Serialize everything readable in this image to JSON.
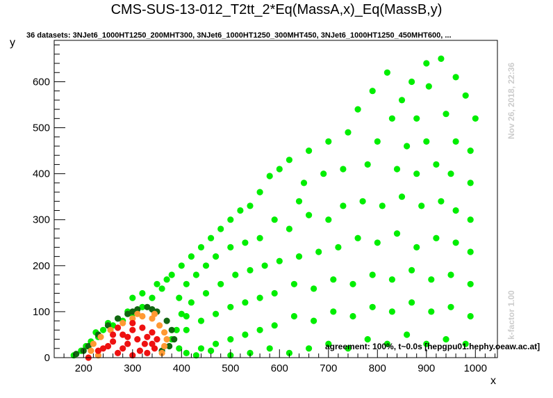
{
  "header": {
    "title": "CMS-SUS-13-012_T2tt_2*Eq(MassA,x)_Eq(MassB,y)",
    "subtitle": "36 datasets: 3NJet6_1000HT1250_200MHT300, 3NJet6_1000HT1250_300MHT450, 3NJet6_1000HT1250_450MHT600,  ..."
  },
  "side_labels": {
    "timestamp": "Nov 26, 2018, 22:36",
    "kfactor": "k-factor 1.00"
  },
  "footer": {
    "agreement": "agreement: 100%, t~0.0s [hepgpu01.hephy.oeaw.ac.at]"
  },
  "chart_data": {
    "type": "scatter",
    "title": "CMS-SUS-13-012_T2tt_2*Eq(MassA,x)_Eq(MassB,y)",
    "xlabel": "x",
    "ylabel": "y",
    "xlim": [
      140,
      1045
    ],
    "ylim": [
      0,
      690
    ],
    "xticks": [
      200,
      300,
      400,
      500,
      600,
      700,
      800,
      900,
      1000
    ],
    "yticks": [
      0,
      100,
      200,
      300,
      400,
      500,
      600
    ],
    "grid": false,
    "legend": "none",
    "colors": {
      "bright_green": "#00ee00",
      "dark_green": "#116611",
      "orange": "#ff9933",
      "red": "#ee1111"
    },
    "series": [
      {
        "color": "#00ee00",
        "points": [
          [
            900,
            640
          ],
          [
            930,
            650
          ],
          [
            870,
            600
          ],
          [
            960,
            610
          ],
          [
            820,
            620
          ],
          [
            980,
            570
          ],
          [
            850,
            560
          ],
          [
            905,
            590
          ],
          [
            790,
            580
          ],
          [
            1000,
            520
          ],
          [
            940,
            530
          ],
          [
            880,
            520
          ],
          [
            830,
            520
          ],
          [
            760,
            540
          ],
          [
            990,
            450
          ],
          [
            960,
            470
          ],
          [
            900,
            470
          ],
          [
            860,
            460
          ],
          [
            800,
            470
          ],
          [
            740,
            490
          ],
          [
            700,
            470
          ],
          [
            660,
            450
          ],
          [
            620,
            430
          ],
          [
            600,
            410
          ],
          [
            580,
            395
          ],
          [
            990,
            380
          ],
          [
            950,
            400
          ],
          [
            920,
            420
          ],
          [
            880,
            400
          ],
          [
            840,
            410
          ],
          [
            780,
            420
          ],
          [
            730,
            410
          ],
          [
            690,
            400
          ],
          [
            650,
            380
          ],
          [
            640,
            340
          ],
          [
            560,
            360
          ],
          [
            540,
            330
          ],
          [
            520,
            320
          ],
          [
            500,
            300
          ],
          [
            480,
            280
          ],
          [
            460,
            260
          ],
          [
            440,
            240
          ],
          [
            420,
            220
          ],
          [
            400,
            200
          ],
          [
            380,
            180
          ],
          [
            360,
            150
          ],
          [
            340,
            130
          ],
          [
            320,
            110
          ],
          [
            300,
            95
          ],
          [
            280,
            80
          ],
          [
            990,
            300
          ],
          [
            960,
            320
          ],
          [
            930,
            340
          ],
          [
            890,
            330
          ],
          [
            850,
            350
          ],
          [
            810,
            330
          ],
          [
            770,
            340
          ],
          [
            730,
            330
          ],
          [
            700,
            300
          ],
          [
            660,
            310
          ],
          [
            620,
            280
          ],
          [
            590,
            300
          ],
          [
            560,
            260
          ],
          [
            530,
            250
          ],
          [
            500,
            240
          ],
          [
            470,
            220
          ],
          [
            450,
            200
          ],
          [
            430,
            180
          ],
          [
            410,
            160
          ],
          [
            395,
            130
          ],
          [
            990,
            230
          ],
          [
            960,
            250
          ],
          [
            920,
            260
          ],
          [
            880,
            240
          ],
          [
            840,
            270
          ],
          [
            800,
            250
          ],
          [
            760,
            260
          ],
          [
            720,
            240
          ],
          [
            680,
            230
          ],
          [
            640,
            220
          ],
          [
            600,
            210
          ],
          [
            570,
            200
          ],
          [
            540,
            190
          ],
          [
            510,
            180
          ],
          [
            480,
            160
          ],
          [
            450,
            140
          ],
          [
            420,
            120
          ],
          [
            400,
            95
          ],
          [
            990,
            160
          ],
          [
            950,
            180
          ],
          [
            910,
            170
          ],
          [
            870,
            190
          ],
          [
            830,
            170
          ],
          [
            790,
            180
          ],
          [
            750,
            160
          ],
          [
            710,
            170
          ],
          [
            670,
            150
          ],
          [
            630,
            160
          ],
          [
            590,
            140
          ],
          [
            560,
            130
          ],
          [
            530,
            120
          ],
          [
            500,
            110
          ],
          [
            470,
            95
          ],
          [
            440,
            80
          ],
          [
            410,
            60
          ],
          [
            990,
            90
          ],
          [
            950,
            110
          ],
          [
            910,
            100
          ],
          [
            870,
            120
          ],
          [
            830,
            100
          ],
          [
            790,
            110
          ],
          [
            750,
            90
          ],
          [
            710,
            100
          ],
          [
            670,
            80
          ],
          [
            630,
            90
          ],
          [
            590,
            70
          ],
          [
            560,
            60
          ],
          [
            530,
            50
          ],
          [
            500,
            40
          ],
          [
            470,
            30
          ],
          [
            440,
            20
          ],
          [
            410,
            10
          ],
          [
            980,
            30
          ],
          [
            940,
            40
          ],
          [
            900,
            30
          ],
          [
            860,
            50
          ],
          [
            820,
            30
          ],
          [
            780,
            40
          ],
          [
            740,
            20
          ],
          [
            700,
            30
          ],
          [
            660,
            20
          ],
          [
            620,
            10
          ],
          [
            580,
            20
          ],
          [
            540,
            10
          ],
          [
            500,
            5
          ],
          [
            460,
            15
          ],
          [
            430,
            5
          ],
          [
            395,
            20
          ],
          [
            380,
            40
          ],
          [
            390,
            60
          ],
          [
            410,
            90
          ],
          [
            300,
            130
          ],
          [
            320,
            140
          ],
          [
            350,
            160
          ],
          [
            370,
            170
          ],
          [
            260,
            70
          ],
          [
            240,
            60
          ],
          [
            230,
            45
          ],
          [
            215,
            35
          ],
          [
            205,
            25
          ],
          [
            195,
            15
          ],
          [
            180,
            5
          ],
          [
            225,
            55
          ],
          [
            250,
            75
          ],
          [
            270,
            85
          ],
          [
            290,
            100
          ]
        ]
      },
      {
        "color": "#116611",
        "points": [
          [
            200,
            15
          ],
          [
            210,
            25
          ],
          [
            185,
            8
          ],
          [
            230,
            50
          ],
          [
            250,
            70
          ],
          [
            270,
            85
          ],
          [
            290,
            95
          ],
          [
            310,
            105
          ],
          [
            330,
            110
          ],
          [
            350,
            100
          ],
          [
            370,
            80
          ],
          [
            380,
            60
          ],
          [
            385,
            40
          ],
          [
            375,
            25
          ],
          [
            360,
            15
          ],
          [
            340,
            105
          ],
          [
            300,
            100
          ]
        ]
      },
      {
        "color": "#ff9933",
        "points": [
          [
            220,
            30
          ],
          [
            235,
            45
          ],
          [
            255,
            60
          ],
          [
            280,
            75
          ],
          [
            300,
            85
          ],
          [
            320,
            90
          ],
          [
            340,
            85
          ],
          [
            355,
            70
          ],
          [
            365,
            55
          ],
          [
            370,
            40
          ],
          [
            365,
            25
          ],
          [
            360,
            10
          ],
          [
            215,
            15
          ],
          [
            230,
            5
          ],
          [
            345,
            95
          ],
          [
            310,
            95
          ]
        ]
      },
      {
        "color": "#ee1111",
        "points": [
          [
            210,
            0
          ],
          [
            240,
            20
          ],
          [
            260,
            35
          ],
          [
            280,
            50
          ],
          [
            300,
            60
          ],
          [
            320,
            65
          ],
          [
            340,
            55
          ],
          [
            350,
            40
          ],
          [
            345,
            20
          ],
          [
            330,
            10
          ],
          [
            300,
            5
          ],
          [
            270,
            10
          ],
          [
            250,
            25
          ],
          [
            290,
            30
          ],
          [
            310,
            40
          ],
          [
            325,
            30
          ],
          [
            280,
            20
          ],
          [
            260,
            50
          ],
          [
            300,
            75
          ],
          [
            330,
            45
          ],
          [
            230,
            15
          ],
          [
            290,
            45
          ],
          [
            315,
            15
          ],
          [
            340,
            30
          ],
          [
            270,
            65
          ]
        ]
      }
    ]
  }
}
